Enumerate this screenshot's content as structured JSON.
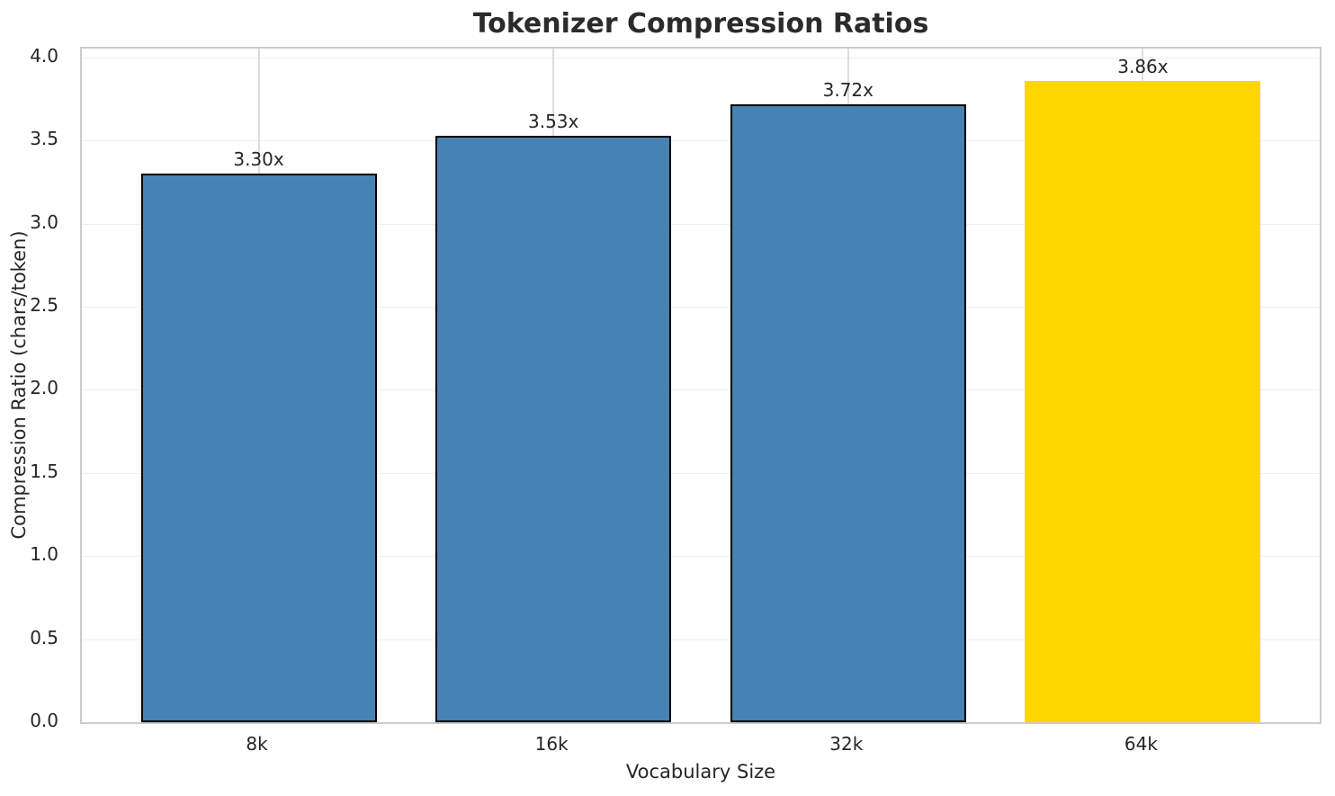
{
  "chart_data": {
    "type": "bar",
    "title": "Tokenizer Compression Ratios",
    "xlabel": "Vocabulary Size",
    "ylabel": "Compression Ratio (chars/token)",
    "categories": [
      "8k",
      "16k",
      "32k",
      "64k"
    ],
    "values": [
      3.3,
      3.53,
      3.72,
      3.86
    ],
    "bar_labels": [
      "3.30x",
      "3.53x",
      "3.72x",
      "3.86x"
    ],
    "highlighted_category": "64k",
    "ylim": [
      0,
      4.053
    ],
    "xlim": [
      -0.6,
      3.6
    ],
    "bar_width": 0.8,
    "yticks": [
      0,
      0.5,
      1,
      1.5,
      2,
      2.5,
      3,
      3.5,
      4
    ],
    "ytick_labels": [
      "0.0",
      "0.5",
      "1.0",
      "1.5",
      "2.0",
      "2.5",
      "3.0",
      "3.5",
      "4.0"
    ],
    "grid": true,
    "legend_position": "none",
    "bar_colors": [
      "#4682B4",
      "#4682B4",
      "#4682B4",
      "#FFD700"
    ],
    "bar_edge_colors": [
      "#000000",
      "#000000",
      "#000000",
      "none"
    ],
    "colors": {
      "bar_default": "#4682B4",
      "bar_highlight": "#FFD700",
      "bar_edge": "#000000",
      "grid_h": "#efefef",
      "grid_v": "#dedede",
      "spine": "#cccccc",
      "text": "#262626",
      "background": "#ffffff"
    }
  }
}
